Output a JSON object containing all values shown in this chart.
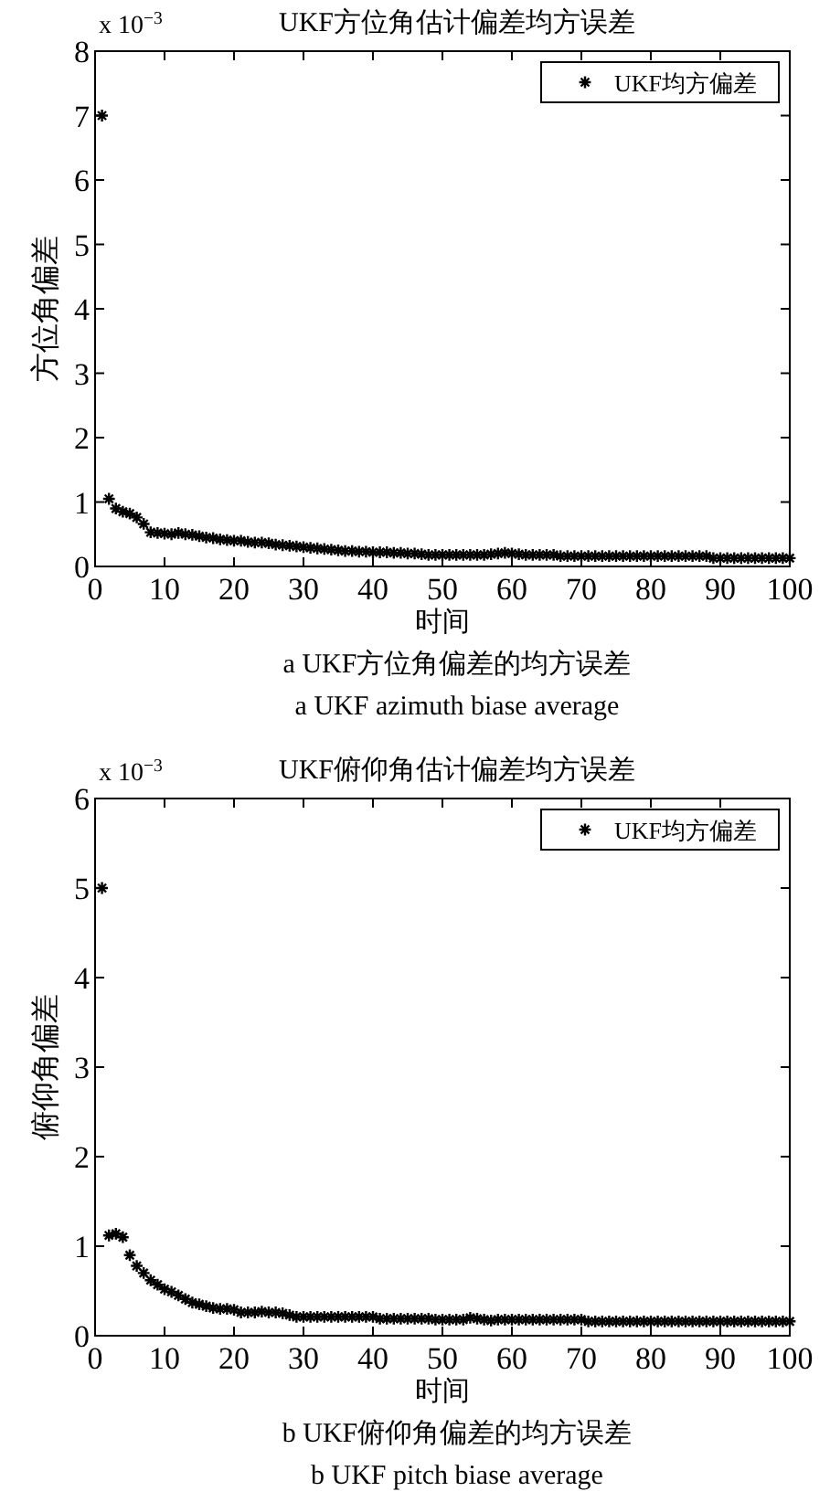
{
  "chart_data": [
    {
      "type": "scatter",
      "title": "UKF方位角估计偏差均方误差",
      "xlabel": "时间",
      "ylabel": "方位角偏差",
      "marker": "cross",
      "legend": "top right",
      "grid": false,
      "annotations": [
        "x 10$^{−3}$",
        "a UKF方位角偏差的均方误差",
        "a UKF azimuth biase average"
      ],
      "xlim": [
        0,
        100
      ],
      "xticks": [
        0,
        10,
        20,
        30,
        40,
        50,
        60,
        70,
        80,
        90,
        100
      ],
      "ylim": [
        0,
        8
      ],
      "yticks": [
        0,
        1,
        2,
        3,
        4,
        5,
        6,
        7,
        8
      ],
      "x": [
        1,
        2,
        3,
        4,
        5,
        6,
        7,
        8,
        9,
        10,
        11,
        12,
        13,
        14,
        15,
        16,
        17,
        18,
        19,
        20,
        21,
        22,
        23,
        24,
        25,
        26,
        27,
        28,
        29,
        30,
        31,
        32,
        33,
        34,
        35,
        36,
        37,
        38,
        39,
        40,
        41,
        42,
        43,
        44,
        45,
        46,
        47,
        48,
        49,
        50,
        51,
        52,
        53,
        54,
        55,
        56,
        57,
        58,
        59,
        60,
        61,
        62,
        63,
        64,
        65,
        66,
        67,
        68,
        69,
        70,
        71,
        72,
        73,
        74,
        75,
        76,
        77,
        78,
        79,
        80,
        81,
        82,
        83,
        84,
        85,
        86,
        87,
        88,
        89,
        90,
        91,
        92,
        93,
        94,
        95,
        96,
        97,
        98,
        99,
        100
      ],
      "series": [
        {
          "name": "UKF均方偏差",
          "color": "#000000",
          "values": [
            7.0,
            1.05,
            0.9,
            0.85,
            0.82,
            0.76,
            0.66,
            0.53,
            0.52,
            0.51,
            0.5,
            0.52,
            0.5,
            0.49,
            0.47,
            0.45,
            0.44,
            0.42,
            0.41,
            0.4,
            0.4,
            0.38,
            0.37,
            0.37,
            0.36,
            0.34,
            0.33,
            0.32,
            0.31,
            0.3,
            0.29,
            0.28,
            0.27,
            0.26,
            0.25,
            0.24,
            0.24,
            0.23,
            0.23,
            0.22,
            0.22,
            0.22,
            0.21,
            0.21,
            0.2,
            0.2,
            0.19,
            0.18,
            0.18,
            0.18,
            0.18,
            0.18,
            0.18,
            0.18,
            0.18,
            0.18,
            0.19,
            0.2,
            0.21,
            0.2,
            0.19,
            0.18,
            0.18,
            0.18,
            0.18,
            0.18,
            0.16,
            0.16,
            0.16,
            0.16,
            0.16,
            0.16,
            0.16,
            0.16,
            0.16,
            0.16,
            0.16,
            0.16,
            0.16,
            0.16,
            0.16,
            0.16,
            0.16,
            0.16,
            0.16,
            0.16,
            0.16,
            0.16,
            0.13,
            0.13,
            0.13,
            0.13,
            0.13,
            0.13,
            0.13,
            0.13,
            0.13,
            0.13,
            0.13,
            0.13
          ]
        }
      ]
    },
    {
      "type": "scatter",
      "title": "UKF俯仰角估计偏差均方误差",
      "xlabel": "时间",
      "ylabel": "俯仰角偏差",
      "marker": "cross",
      "legend": "top right",
      "grid": false,
      "annotations": [
        "x 10$^{−3}$",
        "b UKF俯仰角偏差的均方误差",
        "b UKF pitch biase average"
      ],
      "xlim": [
        0,
        100
      ],
      "xticks": [
        0,
        10,
        20,
        30,
        40,
        50,
        60,
        70,
        80,
        90,
        100
      ],
      "ylim": [
        0,
        6
      ],
      "yticks": [
        0,
        1,
        2,
        3,
        4,
        5,
        6
      ],
      "x": [
        1,
        2,
        3,
        4,
        5,
        6,
        7,
        8,
        9,
        10,
        11,
        12,
        13,
        14,
        15,
        16,
        17,
        18,
        19,
        20,
        21,
        22,
        23,
        24,
        25,
        26,
        27,
        28,
        29,
        30,
        31,
        32,
        33,
        34,
        35,
        36,
        37,
        38,
        39,
        40,
        41,
        42,
        43,
        44,
        45,
        46,
        47,
        48,
        49,
        50,
        51,
        52,
        53,
        54,
        55,
        56,
        57,
        58,
        59,
        60,
        61,
        62,
        63,
        64,
        65,
        66,
        67,
        68,
        69,
        70,
        71,
        72,
        73,
        74,
        75,
        76,
        77,
        78,
        79,
        80,
        81,
        82,
        83,
        84,
        85,
        86,
        87,
        88,
        89,
        90,
        91,
        92,
        93,
        94,
        95,
        96,
        97,
        98,
        99,
        100
      ],
      "series": [
        {
          "name": "UKF均方偏差",
          "color": "#000000",
          "values": [
            5.0,
            1.12,
            1.14,
            1.1,
            0.9,
            0.78,
            0.7,
            0.62,
            0.57,
            0.52,
            0.49,
            0.45,
            0.41,
            0.37,
            0.35,
            0.33,
            0.31,
            0.3,
            0.3,
            0.29,
            0.26,
            0.26,
            0.26,
            0.27,
            0.26,
            0.26,
            0.25,
            0.23,
            0.21,
            0.21,
            0.21,
            0.21,
            0.21,
            0.21,
            0.21,
            0.21,
            0.21,
            0.21,
            0.21,
            0.21,
            0.19,
            0.19,
            0.19,
            0.19,
            0.19,
            0.19,
            0.19,
            0.19,
            0.18,
            0.18,
            0.18,
            0.18,
            0.18,
            0.2,
            0.19,
            0.18,
            0.17,
            0.18,
            0.18,
            0.18,
            0.18,
            0.18,
            0.18,
            0.18,
            0.18,
            0.18,
            0.18,
            0.18,
            0.18,
            0.18,
            0.16,
            0.16,
            0.16,
            0.16,
            0.16,
            0.16,
            0.16,
            0.16,
            0.16,
            0.16,
            0.16,
            0.16,
            0.16,
            0.16,
            0.16,
            0.16,
            0.16,
            0.16,
            0.16,
            0.16,
            0.16,
            0.16,
            0.16,
            0.16,
            0.16,
            0.16,
            0.16,
            0.16,
            0.16,
            0.16
          ]
        }
      ]
    }
  ]
}
